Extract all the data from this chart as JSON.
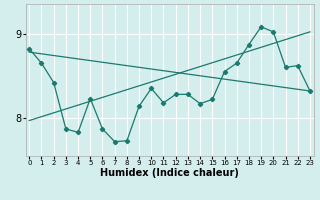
{
  "title": "",
  "xlabel": "Humidex (Indice chaleur)",
  "background_color": "#d4eeee",
  "grid_color": "#ffffff",
  "line_color": "#1a7a6e",
  "x_values": [
    0,
    1,
    2,
    3,
    4,
    5,
    6,
    7,
    8,
    9,
    10,
    11,
    12,
    13,
    14,
    15,
    16,
    17,
    18,
    19,
    20,
    21,
    22,
    23
  ],
  "y_main": [
    8.82,
    8.65,
    8.42,
    7.87,
    7.83,
    8.23,
    7.87,
    7.72,
    7.73,
    8.14,
    8.35,
    8.18,
    8.28,
    8.28,
    8.17,
    8.22,
    8.55,
    8.65,
    8.87,
    9.08,
    9.02,
    8.6,
    8.62,
    8.32
  ],
  "trend1_x": [
    0,
    23
  ],
  "trend1_y": [
    8.78,
    8.32
  ],
  "trend2_x": [
    0,
    23
  ],
  "trend2_y": [
    7.97,
    9.02
  ],
  "ylim": [
    7.55,
    9.35
  ],
  "xlim": [
    -0.3,
    23.3
  ],
  "yticks": [
    8,
    9
  ],
  "xticks": [
    0,
    1,
    2,
    3,
    4,
    5,
    6,
    7,
    8,
    9,
    10,
    11,
    12,
    13,
    14,
    15,
    16,
    17,
    18,
    19,
    20,
    21,
    22,
    23
  ],
  "xlabel_fontsize": 7,
  "ytick_fontsize": 7,
  "xtick_fontsize": 5
}
